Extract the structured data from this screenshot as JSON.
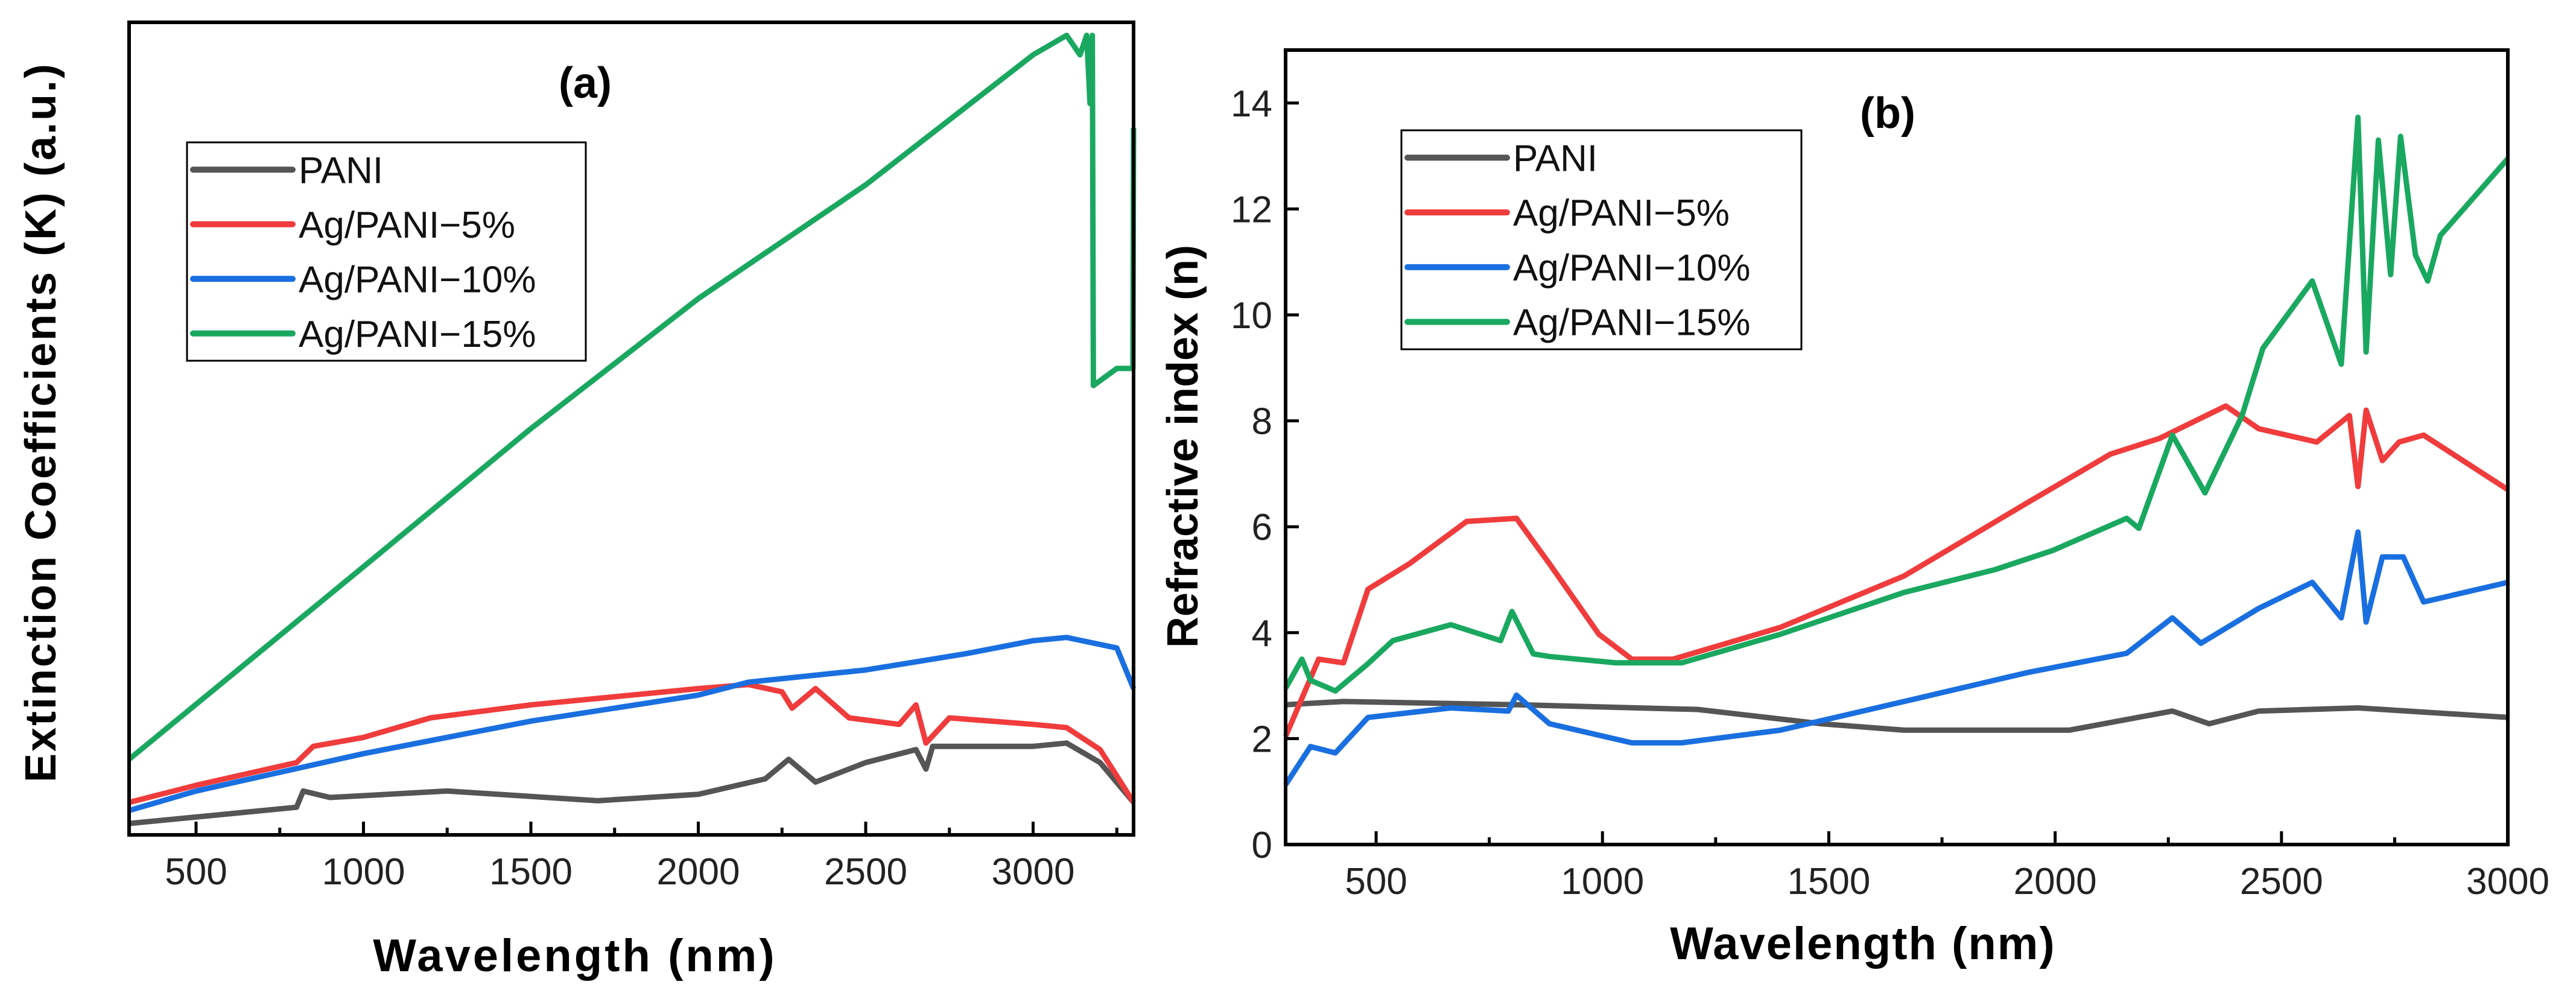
{
  "chart_data": [
    {
      "type": "line",
      "panel_label": "(a)",
      "xlabel": "Wavelength (nm)",
      "ylabel": "Extinction Coefficients (K) (a.u.)",
      "xlim": [
        300,
        3300
      ],
      "ylim": [
        0,
        1
      ],
      "xticks": [
        500,
        1000,
        1500,
        2000,
        2500,
        3000
      ],
      "yticks": [],
      "grid": false,
      "legend_position": "upper-left",
      "series": [
        {
          "name": "PANI",
          "color": "#555555",
          "points": [
            [
              300,
              0.014
            ],
            [
              500,
              0.022
            ],
            [
              800,
              0.034
            ],
            [
              820,
              0.054
            ],
            [
              900,
              0.046
            ],
            [
              1250,
              0.054
            ],
            [
              1700,
              0.042
            ],
            [
              2000,
              0.05
            ],
            [
              2200,
              0.069
            ],
            [
              2270,
              0.093
            ],
            [
              2350,
              0.065
            ],
            [
              2500,
              0.089
            ],
            [
              2650,
              0.105
            ],
            [
              2680,
              0.081
            ],
            [
              2700,
              0.109
            ],
            [
              3000,
              0.109
            ],
            [
              3100,
              0.113
            ],
            [
              3200,
              0.089
            ],
            [
              3300,
              0.04
            ]
          ]
        },
        {
          "name": "Ag/PANI−5%",
          "color": "#f03c3c",
          "points": [
            [
              300,
              0.04
            ],
            [
              500,
              0.061
            ],
            [
              800,
              0.089
            ],
            [
              850,
              0.109
            ],
            [
              1000,
              0.12
            ],
            [
              1200,
              0.144
            ],
            [
              1500,
              0.16
            ],
            [
              2000,
              0.18
            ],
            [
              2150,
              0.185
            ],
            [
              2250,
              0.176
            ],
            [
              2280,
              0.156
            ],
            [
              2350,
              0.18
            ],
            [
              2450,
              0.144
            ],
            [
              2600,
              0.136
            ],
            [
              2650,
              0.16
            ],
            [
              2680,
              0.113
            ],
            [
              2750,
              0.144
            ],
            [
              3000,
              0.136
            ],
            [
              3100,
              0.132
            ],
            [
              3200,
              0.105
            ],
            [
              3300,
              0.04
            ]
          ]
        },
        {
          "name": "Ag/PANI−10%",
          "color": "#1a6fe0",
          "points": [
            [
              300,
              0.03
            ],
            [
              500,
              0.054
            ],
            [
              1000,
              0.1
            ],
            [
              1500,
              0.14
            ],
            [
              2000,
              0.172
            ],
            [
              2150,
              0.188
            ],
            [
              2500,
              0.203
            ],
            [
              2800,
              0.223
            ],
            [
              3000,
              0.239
            ],
            [
              3100,
              0.243
            ],
            [
              3250,
              0.23
            ],
            [
              3300,
              0.18
            ]
          ]
        },
        {
          "name": "Ag/PANI−15%",
          "color": "#1aa860",
          "points": [
            [
              300,
              0.093
            ],
            [
              1000,
              0.33
            ],
            [
              1500,
              0.5
            ],
            [
              2000,
              0.66
            ],
            [
              2500,
              0.8
            ],
            [
              3000,
              0.96
            ],
            [
              3100,
              0.984
            ],
            [
              3140,
              0.96
            ],
            [
              3160,
              0.984
            ],
            [
              3170,
              0.9
            ],
            [
              3177,
              0.984
            ],
            [
              3180,
              0.553
            ],
            [
              3250,
              0.574
            ],
            [
              3298,
              0.574
            ],
            [
              3300,
              0.87
            ]
          ]
        }
      ]
    },
    {
      "type": "line",
      "panel_label": "(b)",
      "xlabel": "Wavelength (nm)",
      "ylabel": "Refractive index (n)",
      "xlim": [
        300,
        3000
      ],
      "ylim": [
        0,
        15
      ],
      "xticks": [
        500,
        1000,
        1500,
        2000,
        2500,
        3000
      ],
      "yticks": [
        0,
        2,
        4,
        6,
        8,
        10,
        12,
        14
      ],
      "grid": false,
      "legend_position": "upper-left",
      "series": [
        {
          "name": "PANI",
          "color": "#555555",
          "points": [
            [
              300,
              2.64
            ],
            [
              428,
              2.7
            ],
            [
              810,
              2.64
            ],
            [
              1211,
              2.55
            ],
            [
              1484,
              2.28
            ],
            [
              1666,
              2.16
            ],
            [
              2031,
              2.16
            ],
            [
              2259,
              2.52
            ],
            [
              2340,
              2.28
            ],
            [
              2450,
              2.52
            ],
            [
              2669,
              2.58
            ],
            [
              3000,
              2.4
            ]
          ]
        },
        {
          "name": "Ag/PANI−5%",
          "color": "#f03c3c",
          "points": [
            [
              300,
              2.04
            ],
            [
              373,
              3.5
            ],
            [
              428,
              3.43
            ],
            [
              482,
              4.82
            ],
            [
              573,
              5.3
            ],
            [
              700,
              6.1
            ],
            [
              810,
              6.16
            ],
            [
              883,
              5.3
            ],
            [
              992,
              3.97
            ],
            [
              1065,
              3.5
            ],
            [
              1156,
              3.5
            ],
            [
              1393,
              4.1
            ],
            [
              1666,
              5.07
            ],
            [
              1940,
              6.46
            ],
            [
              2122,
              7.37
            ],
            [
              2231,
              7.67
            ],
            [
              2377,
              8.28
            ],
            [
              2450,
              7.85
            ],
            [
              2578,
              7.6
            ],
            [
              2650,
              8.1
            ],
            [
              2669,
              6.76
            ],
            [
              2687,
              8.2
            ],
            [
              2723,
              7.25
            ],
            [
              2760,
              7.6
            ],
            [
              2814,
              7.73
            ],
            [
              3000,
              6.7
            ]
          ]
        },
        {
          "name": "Ag/PANI−10%",
          "color": "#1a6fe0",
          "points": [
            [
              300,
              1.13
            ],
            [
              355,
              1.85
            ],
            [
              410,
              1.73
            ],
            [
              482,
              2.4
            ],
            [
              665,
              2.58
            ],
            [
              792,
              2.52
            ],
            [
              810,
              2.82
            ],
            [
              883,
              2.28
            ],
            [
              1065,
              1.92
            ],
            [
              1175,
              1.92
            ],
            [
              1393,
              2.16
            ],
            [
              1666,
              2.7
            ],
            [
              1940,
              3.25
            ],
            [
              2158,
              3.61
            ],
            [
              2259,
              4.28
            ],
            [
              2322,
              3.8
            ],
            [
              2450,
              4.46
            ],
            [
              2568,
              4.95
            ],
            [
              2632,
              4.28
            ],
            [
              2669,
              5.9
            ],
            [
              2687,
              4.2
            ],
            [
              2723,
              5.43
            ],
            [
              2769,
              5.43
            ],
            [
              2814,
              4.58
            ],
            [
              3000,
              4.95
            ]
          ]
        },
        {
          "name": "Ag/PANI−15%",
          "color": "#1aa860",
          "points": [
            [
              300,
              2.95
            ],
            [
              336,
              3.5
            ],
            [
              355,
              3.1
            ],
            [
              410,
              2.9
            ],
            [
              480,
              3.4
            ],
            [
              537,
              3.85
            ],
            [
              665,
              4.15
            ],
            [
              775,
              3.85
            ],
            [
              800,
              4.4
            ],
            [
              847,
              3.6
            ],
            [
              883,
              3.55
            ],
            [
              1030,
              3.43
            ],
            [
              1175,
              3.43
            ],
            [
              1393,
              3.97
            ],
            [
              1666,
              4.76
            ],
            [
              1867,
              5.19
            ],
            [
              1994,
              5.55
            ],
            [
              2158,
              6.16
            ],
            [
              2185,
              5.97
            ],
            [
              2259,
              7.73
            ],
            [
              2331,
              6.64
            ],
            [
              2413,
              8.1
            ],
            [
              2459,
              9.37
            ],
            [
              2568,
              10.64
            ],
            [
              2632,
              9.07
            ],
            [
              2669,
              13.73
            ],
            [
              2687,
              9.3
            ],
            [
              2714,
              13.3
            ],
            [
              2741,
              10.76
            ],
            [
              2763,
              13.37
            ],
            [
              2796,
              11.13
            ],
            [
              2823,
              10.64
            ],
            [
              2851,
              11.5
            ],
            [
              3000,
              12.95
            ]
          ]
        }
      ]
    }
  ]
}
